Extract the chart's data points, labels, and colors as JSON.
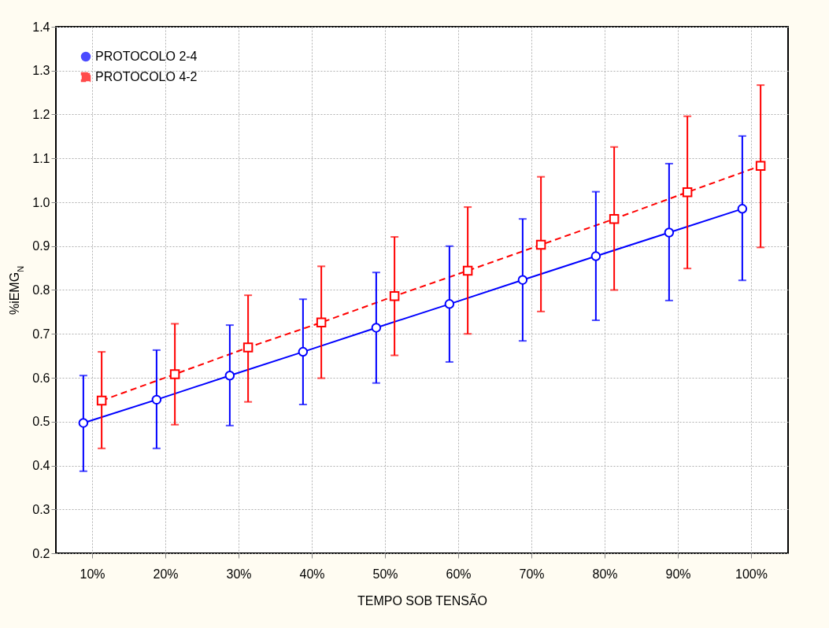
{
  "chart_data": {
    "type": "line",
    "xlabel": "TEMPO SOB TENSÃO",
    "ylabel": "%iEMG$_{N}$",
    "categories": [
      "10%",
      "20%",
      "30%",
      "40%",
      "50%",
      "60%",
      "70%",
      "80%",
      "90%",
      "100%"
    ],
    "ylim": [
      0.2,
      1.4
    ],
    "yticks": [
      0.2,
      0.3,
      0.4,
      0.5,
      0.6,
      0.7,
      0.8,
      0.9,
      {
        "value": 1,
        "label": "1.0"
      },
      1.1,
      1.2,
      1.3,
      1.4
    ],
    "grid": true,
    "legend": "top left",
    "series": [
      {
        "name": "PROTOCOLO 2-4",
        "color": "#0000ff",
        "marker": "circle",
        "line_style": "solid",
        "values": [
          0.497,
          0.55,
          0.605,
          0.659,
          0.714,
          0.768,
          0.823,
          0.877,
          0.931,
          0.985
        ],
        "errors": [
          [
            0.387,
            0.605
          ],
          [
            0.439,
            0.663
          ],
          [
            0.491,
            0.72
          ],
          [
            0.539,
            0.779
          ],
          [
            0.588,
            0.84
          ],
          [
            0.636,
            0.9
          ],
          [
            0.684,
            0.962
          ],
          [
            0.731,
            1.024
          ],
          [
            0.776,
            1.088
          ],
          [
            0.822,
            1.151
          ]
        ]
      },
      {
        "name": "PROTOCOLO 4-2",
        "color": "#ff0000",
        "marker": "square",
        "line_style": "dashed",
        "values": [
          0.548,
          0.608,
          0.669,
          0.726,
          0.786,
          0.844,
          0.903,
          0.962,
          1.023,
          1.083
        ],
        "errors": [
          [
            0.439,
            0.659
          ],
          [
            0.493,
            0.723
          ],
          [
            0.545,
            0.788
          ],
          [
            0.599,
            0.854
          ],
          [
            0.651,
            0.921
          ],
          [
            0.7,
            0.989
          ],
          [
            0.751,
            1.058
          ],
          [
            0.8,
            1.126
          ],
          [
            0.849,
            1.196
          ],
          [
            0.897,
            1.267
          ]
        ]
      }
    ]
  }
}
